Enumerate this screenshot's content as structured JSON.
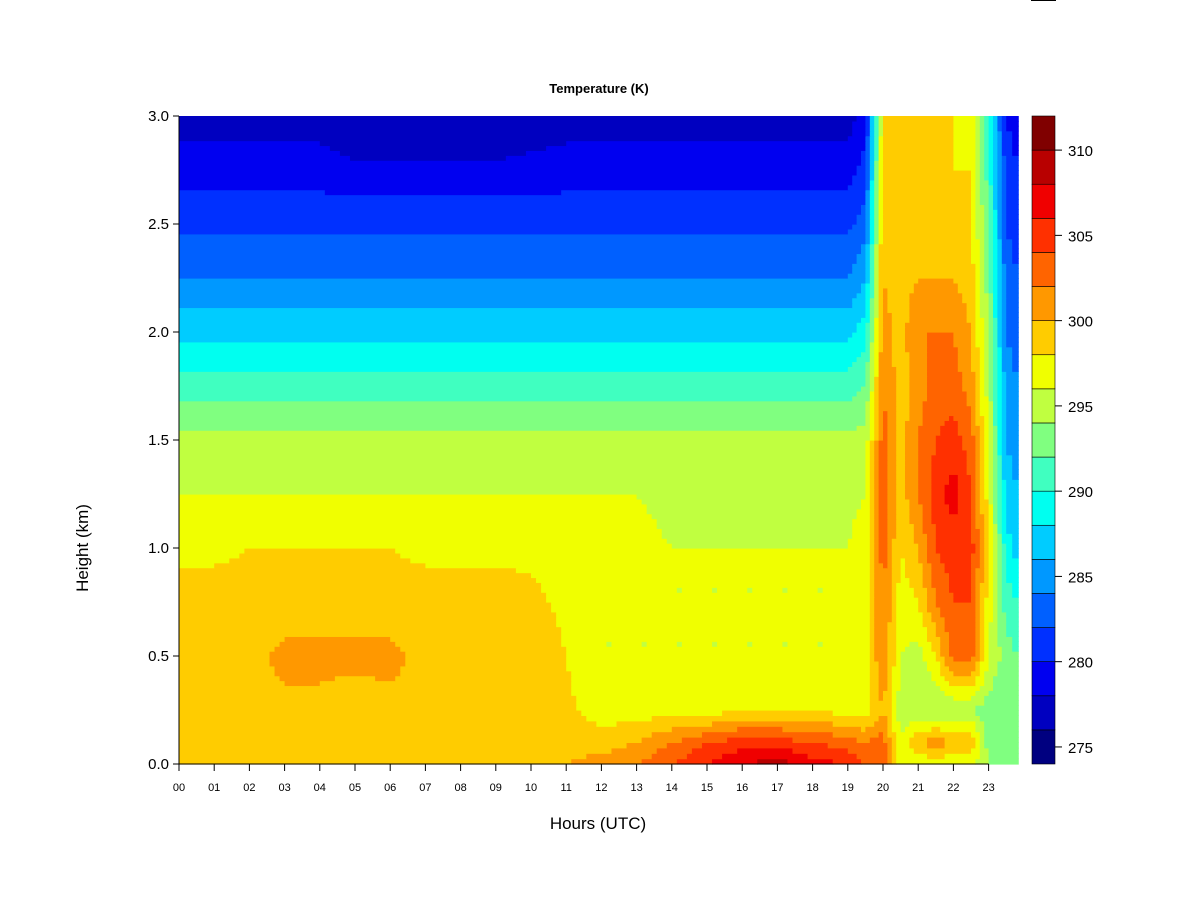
{
  "chart_data": {
    "type": "heatmap",
    "title": "Temperature (K)",
    "xlabel": "Hours (UTC)",
    "ylabel": "Height (km)",
    "xlim": [
      0,
      23.84
    ],
    "ylim": [
      0,
      3.0
    ],
    "x_tick_labels": [
      "00",
      "01",
      "02",
      "03",
      "04",
      "05",
      "06",
      "07",
      "08",
      "09",
      "10",
      "11",
      "12",
      "13",
      "14",
      "15",
      "16",
      "17",
      "18",
      "19",
      "20",
      "21",
      "22",
      "23"
    ],
    "y_ticks": [
      0.0,
      0.5,
      1.0,
      1.5,
      2.0,
      2.5,
      3.0
    ],
    "y_tick_labels": [
      "0.0",
      "0.5",
      "1.0",
      "1.5",
      "2.0",
      "2.5",
      "3.0"
    ],
    "colorbar": {
      "min": 274,
      "max": 312,
      "step": 2,
      "tick_values": [
        275,
        280,
        285,
        290,
        295,
        300,
        305,
        310
      ],
      "tick_labels": [
        "275",
        "280",
        "285",
        "290",
        "295",
        "300",
        "305",
        "310"
      ],
      "colors": [
        "#000080",
        "#0000C0",
        "#0000F0",
        "#0030FF",
        "#0060FF",
        "#0098FF",
        "#00CCFF",
        "#00FFF0",
        "#40FFC0",
        "#80FF80",
        "#C0FF40",
        "#F0FF00",
        "#FFCC00",
        "#FF9800",
        "#FF6400",
        "#FF3000",
        "#F00000",
        "#B80000",
        "#800000"
      ]
    },
    "x": [
      0,
      1,
      2,
      3,
      4,
      5,
      6,
      7,
      8,
      9,
      10,
      11,
      12,
      13,
      14,
      15,
      16,
      17,
      18,
      19,
      19.5,
      20,
      20.5,
      21,
      21.5,
      22,
      22.5,
      23,
      23.5,
      23.84
    ],
    "y": [
      0,
      0.1,
      0.25,
      0.5,
      0.75,
      1.0,
      1.25,
      1.5,
      1.75,
      2.0,
      2.25,
      2.5,
      2.75,
      3.0
    ],
    "z": [
      [
        300,
        300,
        300,
        300,
        300,
        300,
        300,
        300,
        300,
        300,
        300,
        300,
        301,
        302,
        304,
        306,
        308,
        309,
        307,
        306,
        304,
        303,
        297,
        296,
        297,
        296,
        296,
        294,
        294,
        294
      ],
      [
        299,
        299,
        299,
        299,
        299,
        299,
        299,
        299,
        299,
        299,
        299,
        299,
        299,
        300,
        302,
        304,
        305,
        305,
        304,
        303,
        302,
        303,
        296,
        300,
        301,
        300,
        300,
        293,
        293,
        293
      ],
      [
        299,
        299,
        299,
        299.5,
        299.5,
        299,
        299.5,
        299,
        299,
        299,
        299,
        298.5,
        297,
        297,
        297,
        297,
        298,
        298,
        298,
        297,
        297,
        300,
        295,
        294,
        294,
        294,
        294,
        293,
        292,
        292
      ],
      [
        299.5,
        299.5,
        299.5,
        300.5,
        300.5,
        300.5,
        300.5,
        299.5,
        300,
        300,
        299.5,
        298,
        296,
        296,
        296,
        296,
        296,
        296,
        296,
        296,
        297,
        302,
        296,
        295,
        298,
        303,
        303,
        296,
        293,
        292
      ],
      [
        299,
        299,
        299,
        299,
        299,
        299,
        299,
        299,
        299,
        299,
        298.5,
        297.5,
        296,
        296,
        296,
        296,
        296,
        296,
        296,
        296,
        297,
        302,
        297,
        298,
        302,
        304,
        304,
        297,
        291,
        290
      ],
      [
        297.5,
        297.5,
        298,
        298,
        298,
        298,
        298,
        297.5,
        297.5,
        297.5,
        297.5,
        297,
        296.5,
        296.5,
        296,
        296,
        296,
        296,
        296,
        296,
        297,
        303,
        298,
        300,
        304,
        305,
        305,
        298,
        289,
        287
      ],
      [
        296,
        296,
        296,
        296,
        296,
        296,
        296,
        296,
        296,
        296,
        296,
        296,
        296,
        296,
        295.5,
        295.5,
        295.5,
        295.5,
        295.5,
        295.5,
        296,
        303,
        299,
        302,
        305,
        307,
        304,
        297,
        287,
        286
      ],
      [
        294.5,
        294.5,
        294.5,
        294.5,
        294.5,
        294.5,
        294.5,
        294.5,
        294.5,
        294.5,
        294.5,
        294.5,
        294.5,
        294.5,
        294.5,
        294.5,
        294.5,
        294.5,
        294.5,
        294.5,
        295,
        303,
        299,
        302,
        304,
        305,
        303,
        296,
        286,
        285
      ],
      [
        291,
        291,
        291,
        291,
        291,
        291,
        291,
        291,
        291,
        291,
        291,
        291,
        291,
        291,
        291,
        291,
        291,
        291,
        291,
        291,
        292,
        302,
        299,
        301,
        303,
        303,
        301,
        295,
        285,
        284
      ],
      [
        287.5,
        287.5,
        287.5,
        287.5,
        287.5,
        287.5,
        287.5,
        287.5,
        287.5,
        287.5,
        287.5,
        287.5,
        287.5,
        287.5,
        287.5,
        287.5,
        287.5,
        287.5,
        287.5,
        287.5,
        289,
        301,
        299,
        302,
        302,
        302,
        300,
        294,
        284,
        283
      ],
      [
        284,
        284,
        284,
        284,
        284,
        284,
        284,
        284,
        284,
        284,
        284,
        284,
        284,
        284,
        284,
        284,
        284,
        284,
        284,
        284,
        286,
        300,
        299,
        300,
        300,
        300,
        299,
        293,
        283,
        282
      ],
      [
        281.5,
        281.5,
        281.5,
        281.5,
        281.5,
        281.5,
        281.5,
        281.5,
        281.5,
        281.5,
        281.5,
        281.5,
        281.5,
        281.5,
        281.5,
        281.5,
        281.5,
        281.5,
        281.5,
        281.5,
        283,
        300,
        298,
        299,
        299,
        299,
        298,
        292,
        282,
        281
      ],
      [
        279,
        279,
        279,
        279,
        279,
        278.5,
        278.5,
        278.5,
        278.5,
        278.5,
        278.5,
        279,
        279,
        279,
        279,
        279,
        279,
        279,
        279,
        279,
        281,
        299,
        298,
        299,
        299,
        298,
        298,
        291,
        281,
        280
      ],
      [
        277,
        277,
        277,
        277,
        277,
        276,
        276,
        276,
        276,
        276,
        277,
        277,
        277,
        277,
        277,
        277,
        277,
        277,
        277,
        277,
        279,
        298,
        298,
        298,
        298,
        298,
        297,
        290,
        280,
        279
      ]
    ]
  }
}
